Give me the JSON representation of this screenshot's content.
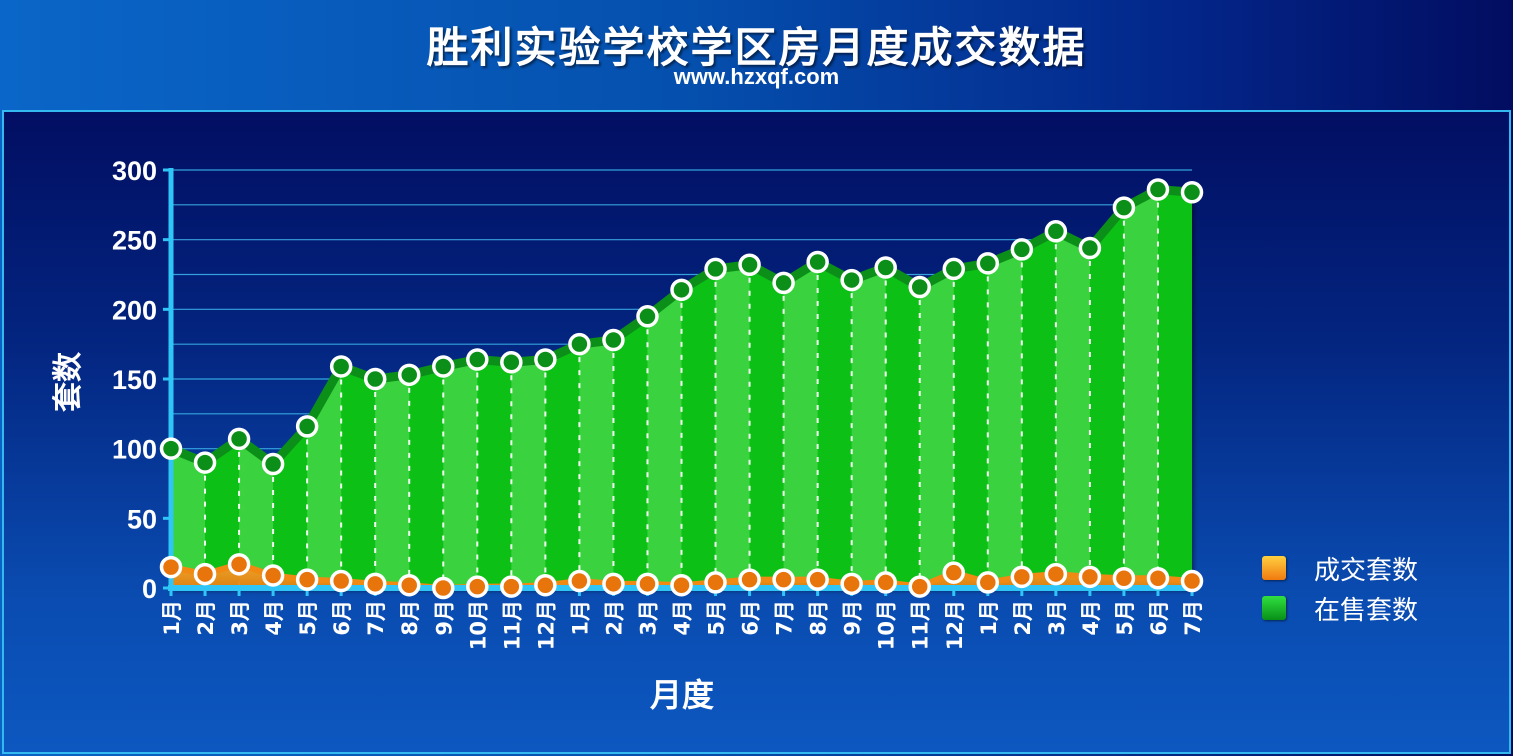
{
  "header": {
    "title": "胜利实验学校学区房月度成交数据",
    "subtitle": "www.hzxqf.com"
  },
  "colors": {
    "sold": "#f39a18",
    "sold_marker": "#e8740c",
    "onsale": "#0ac018",
    "onsale_light": "#4bd84e",
    "onsale_line": "#0b8f18",
    "grid": "#3ab0e8"
  },
  "chart_data": {
    "type": "area",
    "xlabel": "月度",
    "ylabel": "套数",
    "ylim": [
      0,
      300
    ],
    "yticks": [
      0,
      50,
      100,
      150,
      200,
      250,
      300
    ],
    "legend_position": "right",
    "categories": [
      "1月",
      "2月",
      "3月",
      "4月",
      "5月",
      "6月",
      "7月",
      "8月",
      "9月",
      "10月",
      "11月",
      "12月",
      "1月",
      "2月",
      "3月",
      "4月",
      "5月",
      "6月",
      "7月",
      "8月",
      "9月",
      "10月",
      "11月",
      "12月",
      "1月",
      "2月",
      "3月",
      "4月",
      "5月",
      "6月",
      "7月"
    ],
    "series": [
      {
        "name": "成交套数",
        "values": [
          15,
          10,
          17,
          9,
          6,
          5,
          3,
          2,
          0,
          1,
          1,
          2,
          5,
          3,
          3,
          2,
          4,
          6,
          6,
          6,
          3,
          4,
          1,
          11,
          4,
          8,
          10,
          8,
          7,
          7,
          5
        ]
      },
      {
        "name": "在售套数",
        "values": [
          100,
          90,
          107,
          89,
          116,
          159,
          150,
          153,
          159,
          164,
          162,
          164,
          175,
          178,
          195,
          214,
          229,
          232,
          219,
          234,
          221,
          230,
          216,
          229,
          233,
          243,
          256,
          244,
          273,
          286,
          284
        ]
      }
    ]
  }
}
